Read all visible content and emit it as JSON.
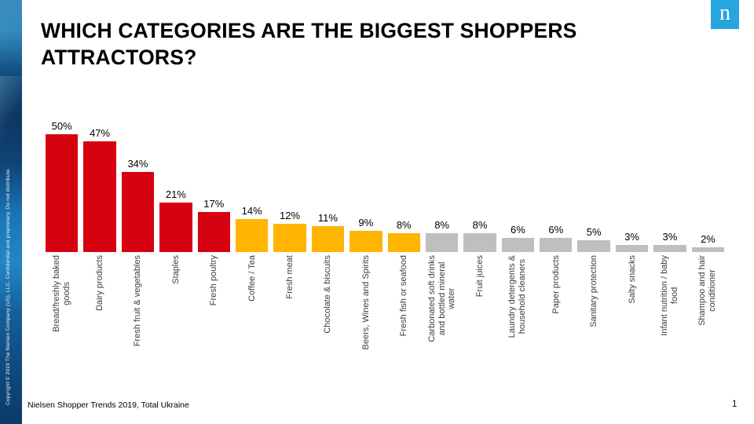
{
  "slide": {
    "title": "WHICH CATEGORIES ARE THE BIGGEST SHOPPERS\nATTRACTORS?",
    "logo_letter": "n",
    "copyright_sidebar": "Copyright © 2019 The Nielsen Company (US), LLC. Confidential and proprietary. Do not distribute.",
    "footer_source": "Nielsen Shopper Trends 2019, Total Ukraine",
    "page_number": "1"
  },
  "chart_data": {
    "type": "bar",
    "title": "WHICH CATEGORIES ARE THE BIGGEST SHOPPERS ATTRACTORS?",
    "xlabel": "",
    "ylabel": "",
    "ylim": [
      0,
      50
    ],
    "grid": false,
    "legend": false,
    "axes_visible": false,
    "value_suffix": "%",
    "categories": [
      "Bread/freshly baked goods",
      "Dairy products",
      "Fresh fruit & vegetables",
      "Staples",
      "Fresh poultry",
      "Coffee / Tea",
      "Fresh meat",
      "Chocolate & biscuits",
      "Beers, Wines and Spirits",
      "Fresh fish or seafood",
      "Carbonated soft drinks and bottled mineral water",
      "Fruit juices",
      "Laundry detergents & household cleaners",
      "Paper products",
      "Sanitary protection",
      "Salty snacks",
      "Infant nutrition / baby food",
      "Shampoo and hair conditioner"
    ],
    "display_labels": [
      "Bread/freshly baked\ngoods",
      "Dairy products",
      "Fresh fruit & vegetables",
      "Staples",
      "Fresh poultry",
      "Coffee / Tea",
      "Fresh meat",
      "Chocolate & biscuits",
      "Beers, Wines and Spirits",
      "Fresh fish or seafood",
      "Carbonated soft drinks\nand bottled mineral\nwater",
      "Fruit juices",
      "Laundry detergents &\nhousehold cleaners",
      "Paper products",
      "Sanitary protection",
      "Salty snacks",
      "Infant nutrition / baby\nfood",
      "Shampoo and hair\nconditioner"
    ],
    "values": [
      50,
      47,
      34,
      21,
      17,
      14,
      12,
      11,
      9,
      8,
      8,
      8,
      6,
      6,
      5,
      3,
      3,
      2
    ],
    "bar_colors": [
      "red",
      "red",
      "red",
      "red",
      "red",
      "orange",
      "orange",
      "orange",
      "orange",
      "orange",
      "gray",
      "gray",
      "gray",
      "gray",
      "gray",
      "gray",
      "gray",
      "gray"
    ],
    "colors": {
      "red": "#d6020f",
      "orange": "#ffb400",
      "gray": "#bfbfbf"
    }
  }
}
